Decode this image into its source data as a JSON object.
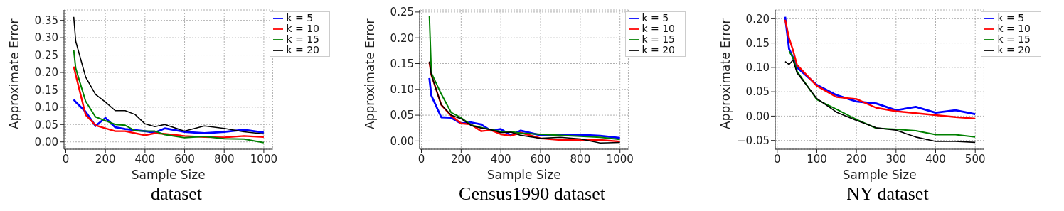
{
  "chart_data": [
    {
      "type": "line",
      "title": "dataset",
      "xlabel": "Sample Size",
      "ylabel": "Approximate Error",
      "x": [
        40,
        50,
        100,
        150,
        200,
        250,
        300,
        350,
        400,
        450,
        500,
        600,
        700,
        800,
        900,
        1000
      ],
      "series": [
        {
          "name": "k = 5",
          "color": "#0000ff",
          "values": [
            0.122,
            0.115,
            0.087,
            0.046,
            0.069,
            0.042,
            0.037,
            0.034,
            0.031,
            0.027,
            0.039,
            0.029,
            0.025,
            0.029,
            0.035,
            0.027
          ]
        },
        {
          "name": "k = 10",
          "color": "#ff0000",
          "values": [
            0.217,
            0.193,
            0.078,
            0.048,
            0.039,
            0.031,
            0.031,
            0.025,
            0.019,
            0.025,
            0.023,
            0.017,
            0.014,
            0.013,
            0.017,
            0.014
          ]
        },
        {
          "name": "k = 15",
          "color": "#008000",
          "values": [
            0.264,
            0.212,
            0.117,
            0.072,
            0.061,
            0.05,
            0.048,
            0.032,
            0.031,
            0.031,
            0.021,
            0.012,
            0.016,
            0.009,
            0.008,
            -0.002
          ]
        },
        {
          "name": "k = 20",
          "color": "#000000",
          "values": [
            0.36,
            0.29,
            0.187,
            0.137,
            0.115,
            0.09,
            0.09,
            0.079,
            0.052,
            0.044,
            0.05,
            0.031,
            0.046,
            0.039,
            0.029,
            0.023
          ]
        }
      ],
      "xlim": [
        -9,
        1045
      ],
      "xticks": [
        0,
        200,
        400,
        600,
        800,
        1000
      ],
      "ylim": [
        -0.021,
        0.38
      ],
      "yticks": [
        {
          "value": 0,
          "label": "0.00"
        },
        {
          "value": 0.05,
          "label": "0.05"
        },
        {
          "value": 0.1,
          "label": "0.10"
        },
        {
          "value": 0.15,
          "label": "0.15"
        },
        {
          "value": 0.2,
          "label": "0.20"
        },
        {
          "value": 0.25,
          "label": "0.25"
        },
        {
          "value": 0.3,
          "label": "0.30"
        },
        {
          "value": 0.35,
          "label": "0.35"
        }
      ],
      "grid": true,
      "legend": "top right",
      "line_style": "solid"
    },
    {
      "type": "line",
      "title": "Census1990 dataset",
      "xlabel": "Sample Size",
      "ylabel": "Approximate Error",
      "x": [
        40,
        50,
        100,
        150,
        200,
        250,
        300,
        350,
        400,
        450,
        500,
        600,
        700,
        800,
        900,
        1000
      ],
      "series": [
        {
          "name": "k = 5",
          "color": "#0000ff",
          "values": [
            0.122,
            0.088,
            0.046,
            0.045,
            0.034,
            0.036,
            0.032,
            0.02,
            0.023,
            0.011,
            0.02,
            0.011,
            0.011,
            0.012,
            0.01,
            0.006
          ]
        },
        {
          "name": "k = 10",
          "color": "#ff0000",
          "values": [
            0.153,
            0.128,
            0.07,
            0.049,
            0.034,
            0.032,
            0.019,
            0.021,
            0.013,
            0.01,
            0.016,
            0.005,
            0.002,
            0.002,
            0.002,
            -0.001
          ]
        },
        {
          "name": "k = 15",
          "color": "#008000",
          "values": [
            0.243,
            0.132,
            0.091,
            0.055,
            0.045,
            0.031,
            0.026,
            0.022,
            0.018,
            0.018,
            0.015,
            0.013,
            0.011,
            0.009,
            0.007,
            0.003
          ]
        },
        {
          "name": "k = 20",
          "color": "#000000",
          "values": [
            0.154,
            0.128,
            0.07,
            0.05,
            0.043,
            0.03,
            0.025,
            0.022,
            0.016,
            0.017,
            0.011,
            0.005,
            0.007,
            0.004,
            -0.004,
            -0.003
          ]
        }
      ],
      "xlim": [
        -9,
        1042
      ],
      "xticks": [
        0,
        200,
        400,
        600,
        800,
        1000
      ],
      "ylim": [
        -0.016,
        0.254
      ],
      "yticks": [
        {
          "value": 0,
          "label": "0.00"
        },
        {
          "value": 0.05,
          "label": "0.05"
        },
        {
          "value": 0.1,
          "label": "0.10"
        },
        {
          "value": 0.15,
          "label": "0.15"
        },
        {
          "value": 0.2,
          "label": "0.20"
        },
        {
          "value": 0.25,
          "label": "0.25"
        }
      ],
      "grid": true,
      "legend": "top right",
      "line_style": "solid"
    },
    {
      "type": "line",
      "title": "NY dataset",
      "xlabel": "Sample Size",
      "ylabel": "Approximate Error",
      "x": [
        20,
        30,
        40,
        50,
        100,
        150,
        200,
        250,
        300,
        350,
        400,
        450,
        500
      ],
      "series": [
        {
          "name": "k = 5",
          "color": "#0000ff",
          "values": [
            0.204,
            0.138,
            0.12,
            0.1,
            0.064,
            0.043,
            0.03,
            0.026,
            0.012,
            0.019,
            0.007,
            0.012,
            0.004
          ]
        },
        {
          "name": "k = 10",
          "color": "#ff0000",
          "values": [
            0.198,
            0.16,
            0.135,
            0.105,
            0.062,
            0.039,
            0.035,
            0.017,
            0.01,
            0.006,
            0.002,
            -0.002,
            -0.005
          ]
        },
        {
          "name": "k = 15",
          "color": "#008000",
          "values": [
            null,
            0.133,
            0.12,
            0.092,
            0.034,
            0.014,
            -0.007,
            -0.025,
            -0.027,
            -0.03,
            -0.038,
            -0.038,
            -0.043
          ]
        },
        {
          "name": "k = 20",
          "color": "#000000",
          "values": [
            0.112,
            0.106,
            0.115,
            0.089,
            0.036,
            0.008,
            -0.009,
            -0.024,
            -0.029,
            -0.043,
            -0.052,
            -0.052,
            -0.054
          ]
        }
      ],
      "xlim": [
        -5,
        522
      ],
      "xticks": [
        0,
        100,
        200,
        300,
        400,
        500
      ],
      "ylim": [
        -0.068,
        0.218
      ],
      "yticks": [
        {
          "value": -0.05,
          "label": "−0.05"
        },
        {
          "value": 0,
          "label": "0.00"
        },
        {
          "value": 0.05,
          "label": "0.05"
        },
        {
          "value": 0.1,
          "label": "0.10"
        },
        {
          "value": 0.15,
          "label": "0.15"
        },
        {
          "value": 0.2,
          "label": "0.20"
        }
      ],
      "grid": true,
      "legend": "top right",
      "line_style": "solid"
    }
  ]
}
